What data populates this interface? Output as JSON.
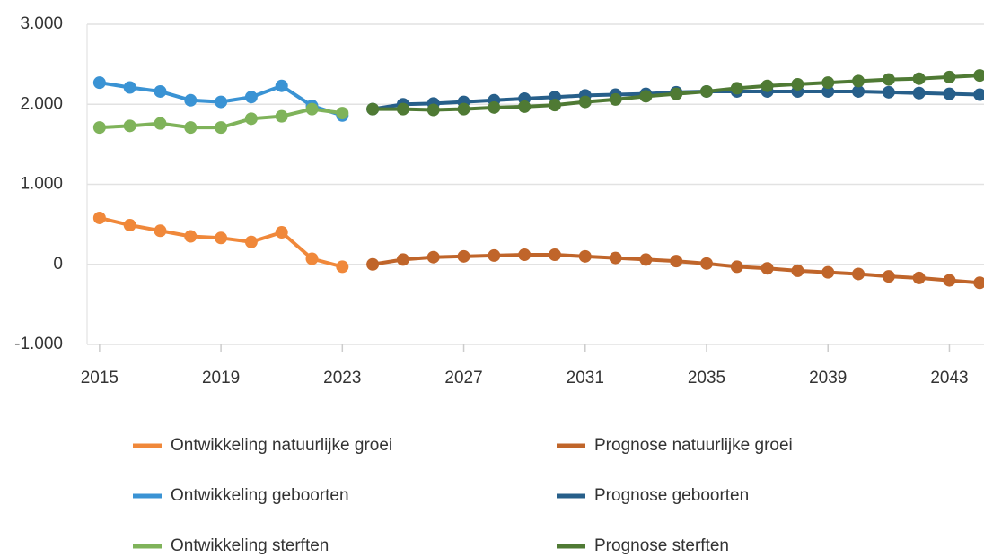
{
  "chart_data": {
    "type": "line",
    "x": [
      2015,
      2016,
      2017,
      2018,
      2019,
      2020,
      2021,
      2022,
      2023,
      2024,
      2025,
      2026,
      2027,
      2028,
      2029,
      2030,
      2031,
      2032,
      2033,
      2034,
      2035,
      2036,
      2037,
      2038,
      2039,
      2040,
      2041,
      2042,
      2043,
      2044
    ],
    "series": [
      {
        "name": "Ontwikkeling natuurlijke groei",
        "color": "#f0883a",
        "values": [
          580,
          490,
          420,
          350,
          330,
          280,
          400,
          70,
          -30,
          null,
          null,
          null,
          null,
          null,
          null,
          null,
          null,
          null,
          null,
          null,
          null,
          null,
          null,
          null,
          null,
          null,
          null,
          null,
          null,
          null
        ]
      },
      {
        "name": "Prognose natuurlijke groei",
        "color": "#c0652a",
        "values": [
          null,
          null,
          null,
          null,
          null,
          null,
          null,
          null,
          null,
          0,
          60,
          90,
          100,
          110,
          120,
          120,
          100,
          80,
          60,
          40,
          10,
          -30,
          -50,
          -80,
          -100,
          -120,
          -150,
          -170,
          -200,
          -230
        ]
      },
      {
        "name": "Ontwikkeling geboorten",
        "color": "#3a93d4",
        "values": [
          2270,
          2210,
          2160,
          2050,
          2030,
          2090,
          2230,
          1980,
          1860,
          null,
          null,
          null,
          null,
          null,
          null,
          null,
          null,
          null,
          null,
          null,
          null,
          null,
          null,
          null,
          null,
          null,
          null,
          null,
          null,
          null
        ]
      },
      {
        "name": "Prognose geboorten",
        "color": "#275f8a",
        "values": [
          null,
          null,
          null,
          null,
          null,
          null,
          null,
          null,
          null,
          1940,
          2000,
          2010,
          2030,
          2050,
          2070,
          2090,
          2110,
          2120,
          2130,
          2150,
          2160,
          2160,
          2160,
          2160,
          2160,
          2160,
          2150,
          2140,
          2130,
          2120
        ]
      },
      {
        "name": "Ontwikkeling sterften",
        "color": "#7fb35a",
        "values": [
          1710,
          1730,
          1760,
          1710,
          1710,
          1820,
          1850,
          1940,
          1890,
          null,
          null,
          null,
          null,
          null,
          null,
          null,
          null,
          null,
          null,
          null,
          null,
          null,
          null,
          null,
          null,
          null,
          null,
          null,
          null,
          null
        ]
      },
      {
        "name": "Prognose sterften",
        "color": "#4f7a34",
        "values": [
          null,
          null,
          null,
          null,
          null,
          null,
          null,
          null,
          null,
          1940,
          1940,
          1930,
          1940,
          1960,
          1970,
          1990,
          2030,
          2060,
          2100,
          2130,
          2160,
          2200,
          2230,
          2250,
          2270,
          2290,
          2310,
          2320,
          2340,
          2360
        ]
      }
    ],
    "xlim": [
      2014.59,
      2044.14
    ],
    "xticks": [
      2015,
      2019,
      2023,
      2027,
      2031,
      2035,
      2039,
      2043
    ],
    "ylim": [
      -1000,
      3000
    ],
    "yticks": [
      {
        "value": -1000,
        "label": "-1.000"
      },
      0,
      {
        "value": 1000,
        "label": "1.000"
      },
      {
        "value": 2000,
        "label": "2.000"
      },
      {
        "value": 3000,
        "label": "3.000"
      }
    ],
    "grid": true
  }
}
